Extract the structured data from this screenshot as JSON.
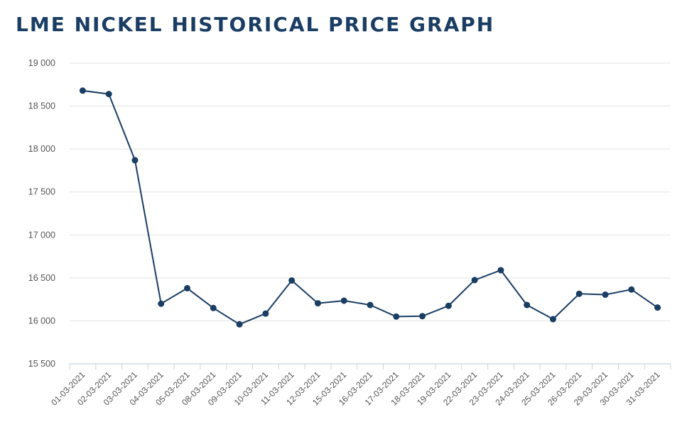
{
  "chart_data": {
    "type": "line",
    "title": "LME NICKEL HISTORICAL PRICE GRAPH",
    "xlabel": "",
    "ylabel": "",
    "ylim": [
      15500,
      19000
    ],
    "yticks": [
      19000,
      18500,
      18000,
      17500,
      17000,
      16500,
      16000,
      15500
    ],
    "ytick_labels": [
      "19 000",
      "18 500",
      "18 000",
      "17 500",
      "17 000",
      "16 500",
      "16 000",
      "15 500"
    ],
    "grid": "horizontal",
    "line_color": "#1a3d64",
    "categories": [
      "01-03-2021",
      "02-03-2021",
      "03-03-2021",
      "04-03-2021",
      "05-03-2021",
      "08-03-2021",
      "09-03-2021",
      "10-03-2021",
      "11-03-2021",
      "12-03-2021",
      "15-03-2021",
      "16-03-2021",
      "17-03-2021",
      "18-03-2021",
      "19-03-2021",
      "22-03-2021",
      "23-03-2021",
      "24-03-2021",
      "25-03-2021",
      "26-03-2021",
      "29-03-2021",
      "30-03-2021",
      "31-03-2021"
    ],
    "values": [
      18680,
      18640,
      17870,
      16200,
      16380,
      16150,
      15960,
      16085,
      16470,
      16205,
      16235,
      16185,
      16050,
      16055,
      16175,
      16475,
      16590,
      16185,
      16020,
      16315,
      16305,
      16365,
      16155
    ]
  }
}
